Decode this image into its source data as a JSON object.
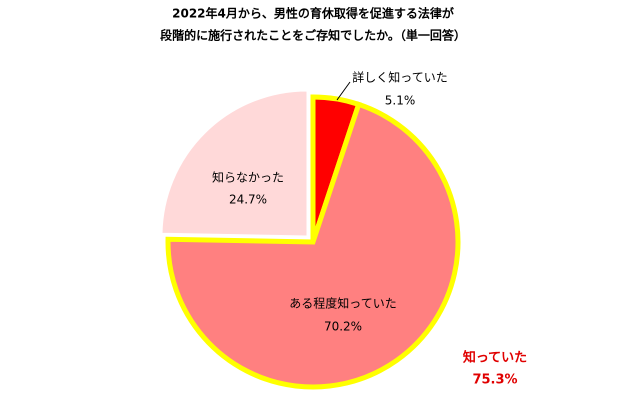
{
  "chart_data": {
    "type": "pie",
    "title": [
      "2022年4月から、男性の育休取得を促進する法律が",
      "段階的に施行されたことをご存知でしたか。（単一回答）"
    ],
    "categories": [
      "詳しく知っていた",
      "ある程度知っていた",
      "知らなかった"
    ],
    "values": [
      5.1,
      70.2,
      24.7
    ],
    "value_labels": [
      "5.1%",
      "70.2%",
      "24.7%"
    ],
    "colors": [
      "#ff0000",
      "#ff8080",
      "#ffd9d9"
    ],
    "highlight_color": "#ffff00",
    "annotation": [
      "知っていた",
      "75.3%"
    ],
    "annotation_color": "#e00000"
  }
}
